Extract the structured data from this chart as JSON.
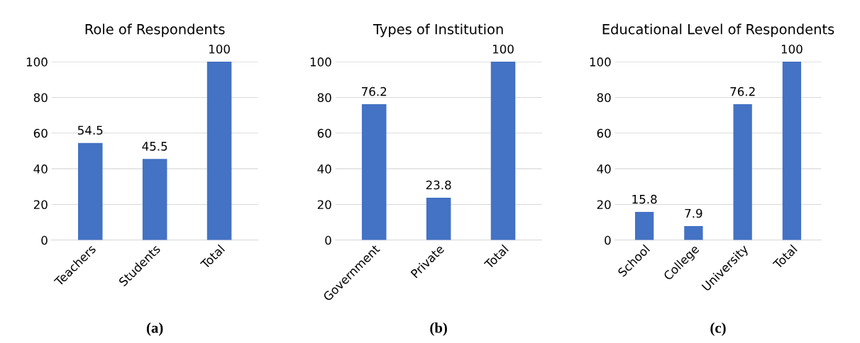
{
  "chart_data": [
    {
      "type": "bar",
      "title": "Role of Respondents",
      "categories": [
        "Teachers",
        "Students",
        "Total"
      ],
      "values": [
        54.5,
        45.5,
        100
      ],
      "color": "#4472c4",
      "ylim": [
        0,
        100
      ],
      "yticks": [
        0,
        20,
        40,
        60,
        80,
        100
      ],
      "grid": "y",
      "data_labels": true,
      "annotations": [
        "(a)"
      ]
    },
    {
      "type": "bar",
      "title": "Types of Institution",
      "categories": [
        "Government",
        "Private",
        "Total"
      ],
      "values": [
        76.2,
        23.8,
        100
      ],
      "color": "#4472c4",
      "ylim": [
        0,
        100
      ],
      "yticks": [
        0,
        20,
        40,
        60,
        80,
        100
      ],
      "grid": "y",
      "data_labels": true,
      "annotations": [
        "(b)"
      ]
    },
    {
      "type": "bar",
      "title": "Educational Level of Respondents",
      "categories": [
        "School",
        "College",
        "University",
        "Total"
      ],
      "values": [
        15.8,
        7.9,
        76.2,
        100
      ],
      "color": "#4472c4",
      "ylim": [
        0,
        100
      ],
      "yticks": [
        0,
        20,
        40,
        60,
        80,
        100
      ],
      "grid": "y",
      "data_labels": true,
      "annotations": [
        "(c)"
      ]
    }
  ]
}
